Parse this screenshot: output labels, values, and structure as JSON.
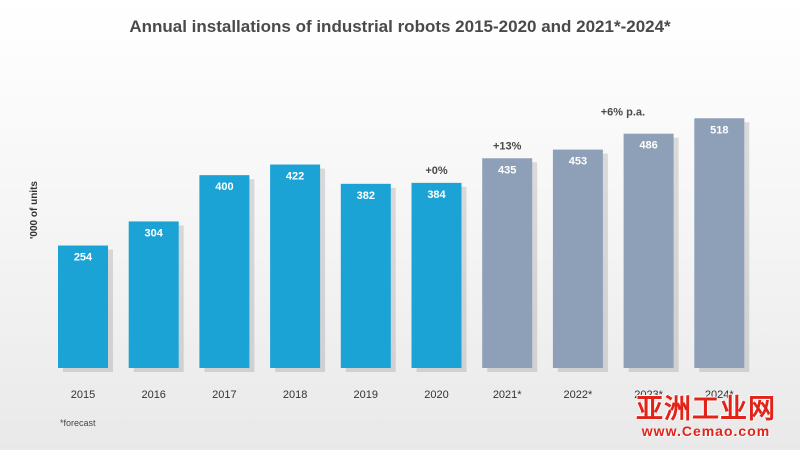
{
  "colors": {
    "actual": "#1ba3d6",
    "forecast": "#8ea0b8"
  },
  "chart_data": {
    "type": "bar",
    "title": "Annual installations of industrial robots 2015-2020 and 2021*-2024*",
    "ylabel": "'000 of units",
    "xlabel": "",
    "ylim": [
      0,
      560
    ],
    "grid": false,
    "legend": "none",
    "categories": [
      "2015",
      "2016",
      "2017",
      "2018",
      "2019",
      "2020",
      "2021*",
      "2022*",
      "2023*",
      "2024*"
    ],
    "values": [
      254,
      304,
      400,
      422,
      382,
      384,
      435,
      453,
      486,
      518
    ],
    "forecast": [
      false,
      false,
      false,
      false,
      false,
      false,
      true,
      true,
      true,
      true
    ],
    "annotations": [
      {
        "text": "+0%",
        "category": "2020"
      },
      {
        "text": "+13%",
        "category": "2021*"
      },
      {
        "text": "+6% p.a.",
        "category": "2022*"
      }
    ]
  },
  "footnote": "*forecast",
  "watermark": {
    "text": "亚洲工业网",
    "url": "www.Cemao.com"
  }
}
